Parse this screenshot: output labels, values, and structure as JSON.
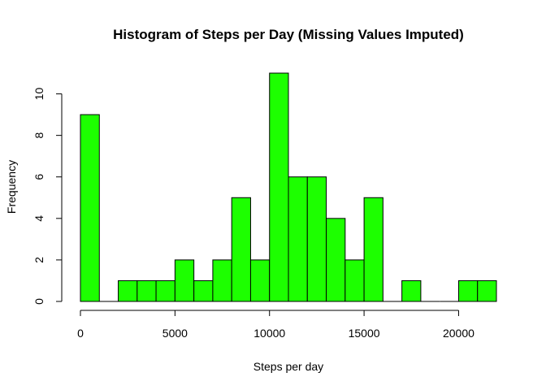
{
  "chart_data": {
    "type": "bar",
    "title": "Histogram of Steps per Day (Missing Values Imputed)",
    "xlabel": "Steps per day",
    "ylabel": "Frequency",
    "bin_width": 1000,
    "bin_starts": [
      0,
      1000,
      2000,
      3000,
      4000,
      5000,
      6000,
      7000,
      8000,
      9000,
      10000,
      11000,
      12000,
      13000,
      14000,
      15000,
      16000,
      17000,
      18000,
      19000,
      20000,
      21000
    ],
    "values": [
      9,
      0,
      1,
      1,
      1,
      2,
      1,
      2,
      5,
      2,
      11,
      6,
      6,
      4,
      2,
      5,
      0,
      1,
      0,
      0,
      1,
      1
    ],
    "xlim": [
      0,
      22000
    ],
    "ylim": [
      0,
      11
    ],
    "x_ticks": [
      0,
      5000,
      10000,
      15000,
      20000
    ],
    "y_ticks": [
      0,
      2,
      4,
      6,
      8,
      10
    ],
    "grid": false,
    "bar_fill": "#1dff00",
    "bar_stroke": "#000000"
  }
}
